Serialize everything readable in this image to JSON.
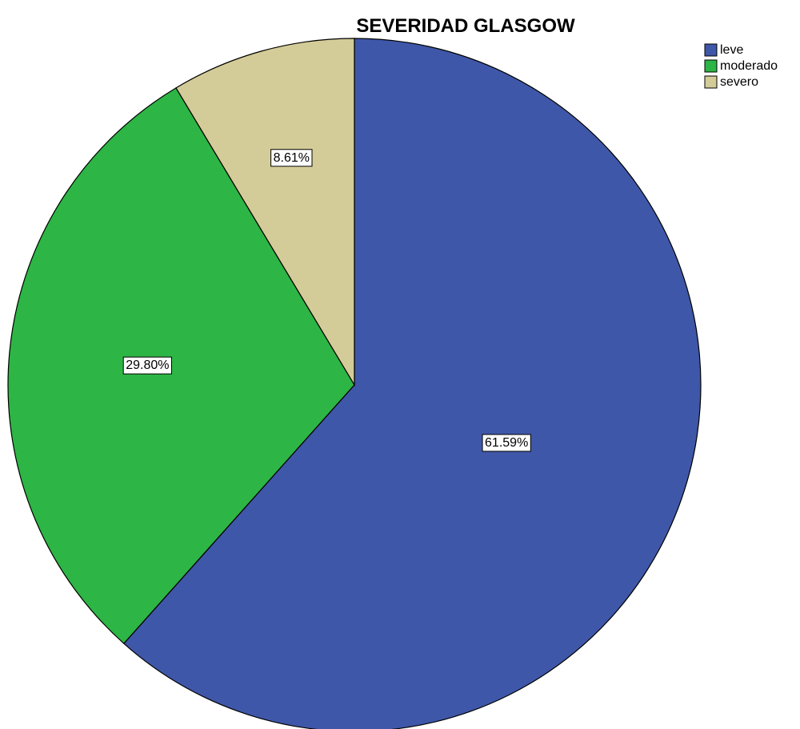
{
  "chart_data": {
    "type": "pie",
    "title": "SEVERIDAD GLASGOW",
    "categories": [
      "leve",
      "moderado",
      "severo"
    ],
    "values": [
      61.59,
      29.8,
      8.61
    ],
    "data_labels": [
      "61.59%",
      "29.80%",
      "8.61%"
    ],
    "colors": [
      "#3f57a8",
      "#2db545",
      "#d4cc98"
    ],
    "legend": {
      "placement": "top-right",
      "entries": [
        "leve",
        "moderado",
        "severo"
      ]
    },
    "start_angle": "12 o'clock",
    "direction": "clockwise"
  }
}
